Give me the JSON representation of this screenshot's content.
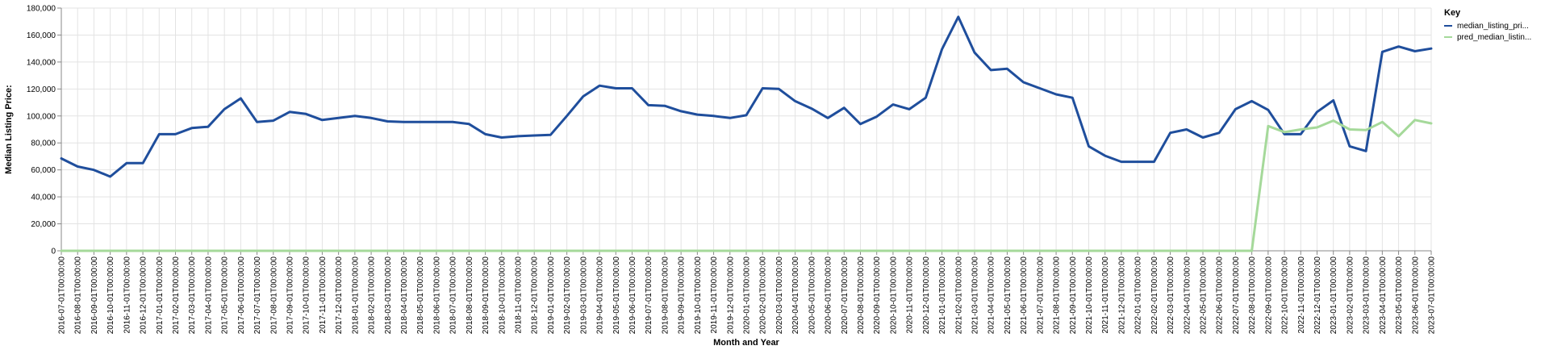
{
  "chart_data": {
    "type": "line",
    "xlabel": "Month and Year",
    "ylabel": "Median Listing Price:",
    "ylim": [
      0,
      180000
    ],
    "y_ticks": [
      "0",
      "20,000",
      "40,000",
      "60,000",
      "80,000",
      "100,000",
      "120,000",
      "140,000",
      "160,000",
      "180,000"
    ],
    "y_tick_values": [
      0,
      20000,
      40000,
      60000,
      80000,
      100000,
      120000,
      140000,
      160000,
      180000
    ],
    "grid": true,
    "legend": {
      "title": "Key",
      "position": "right"
    },
    "x": [
      "2016-07-01T00:00:00",
      "2016-08-01T00:00:00",
      "2016-09-01T00:00:00",
      "2016-10-01T00:00:00",
      "2016-11-01T00:00:00",
      "2016-12-01T00:00:00",
      "2017-01-01T00:00:00",
      "2017-02-01T00:00:00",
      "2017-03-01T00:00:00",
      "2017-04-01T00:00:00",
      "2017-05-01T00:00:00",
      "2017-06-01T00:00:00",
      "2017-07-01T00:00:00",
      "2017-08-01T00:00:00",
      "2017-09-01T00:00:00",
      "2017-10-01T00:00:00",
      "2017-11-01T00:00:00",
      "2017-12-01T00:00:00",
      "2018-01-01T00:00:00",
      "2018-02-01T00:00:00",
      "2018-03-01T00:00:00",
      "2018-04-01T00:00:00",
      "2018-05-01T00:00:00",
      "2018-06-01T00:00:00",
      "2018-07-01T00:00:00",
      "2018-08-01T00:00:00",
      "2018-09-01T00:00:00",
      "2018-10-01T00:00:00",
      "2018-11-01T00:00:00",
      "2018-12-01T00:00:00",
      "2019-01-01T00:00:00",
      "2019-02-01T00:00:00",
      "2019-03-01T00:00:00",
      "2019-04-01T00:00:00",
      "2019-05-01T00:00:00",
      "2019-06-01T00:00:00",
      "2019-07-01T00:00:00",
      "2019-08-01T00:00:00",
      "2019-09-01T00:00:00",
      "2019-10-01T00:00:00",
      "2019-11-01T00:00:00",
      "2019-12-01T00:00:00",
      "2020-01-01T00:00:00",
      "2020-02-01T00:00:00",
      "2020-03-01T00:00:00",
      "2020-04-01T00:00:00",
      "2020-05-01T00:00:00",
      "2020-06-01T00:00:00",
      "2020-07-01T00:00:00",
      "2020-08-01T00:00:00",
      "2020-09-01T00:00:00",
      "2020-10-01T00:00:00",
      "2020-11-01T00:00:00",
      "2020-12-01T00:00:00",
      "2021-01-01T00:00:00",
      "2021-02-01T00:00:00",
      "2021-03-01T00:00:00",
      "2021-04-01T00:00:00",
      "2021-05-01T00:00:00",
      "2021-06-01T00:00:00",
      "2021-07-01T00:00:00",
      "2021-08-01T00:00:00",
      "2021-09-01T00:00:00",
      "2021-10-01T00:00:00",
      "2021-11-01T00:00:00",
      "2021-12-01T00:00:00",
      "2022-01-01T00:00:00",
      "2022-02-01T00:00:00",
      "2022-03-01T00:00:00",
      "2022-04-01T00:00:00",
      "2022-05-01T00:00:00",
      "2022-06-01T00:00:00",
      "2022-07-01T00:00:00",
      "2022-08-01T00:00:00",
      "2022-09-01T00:00:00",
      "2022-10-01T00:00:00",
      "2022-11-01T00:00:00",
      "2022-12-01T00:00:00",
      "2023-01-01T00:00:00",
      "2023-02-01T00:00:00",
      "2023-03-01T00:00:00",
      "2023-04-01T00:00:00",
      "2023-05-01T00:00:00",
      "2023-06-01T00:00:00",
      "2023-07-01T00:00:00"
    ],
    "series": [
      {
        "name": "median_listing_pri...",
        "color": "#1f4e9c",
        "values": [
          68500,
          62500,
          60000,
          55000,
          65000,
          65000,
          86500,
          86500,
          91000,
          92000,
          105000,
          113000,
          95500,
          96500,
          103000,
          101500,
          97000,
          98500,
          100000,
          98500,
          96000,
          95500,
          95500,
          95500,
          95500,
          94000,
          86500,
          84000,
          85000,
          85500,
          86000,
          100000,
          114500,
          122500,
          120500,
          120500,
          108000,
          107500,
          103500,
          101000,
          100000,
          98500,
          100500,
          120500,
          120000,
          111000,
          105500,
          98500,
          106000,
          94000,
          99500,
          108500,
          105000,
          113500,
          149500,
          173500,
          147000,
          134000,
          135000,
          125000,
          120500,
          116000,
          113500,
          77500,
          70500,
          66000,
          66000,
          66000,
          87500,
          90000,
          84000,
          87500,
          105000,
          111000,
          104500,
          86500,
          86500,
          103000,
          111500,
          77500,
          74000,
          147500,
          151500,
          148000,
          150000
        ]
      },
      {
        "name": "pred_median_listin...",
        "color": "#a5d99a",
        "values": [
          0,
          0,
          0,
          0,
          0,
          0,
          0,
          0,
          0,
          0,
          0,
          0,
          0,
          0,
          0,
          0,
          0,
          0,
          0,
          0,
          0,
          0,
          0,
          0,
          0,
          0,
          0,
          0,
          0,
          0,
          0,
          0,
          0,
          0,
          0,
          0,
          0,
          0,
          0,
          0,
          0,
          0,
          0,
          0,
          0,
          0,
          0,
          0,
          0,
          0,
          0,
          0,
          0,
          0,
          0,
          0,
          0,
          0,
          0,
          0,
          0,
          0,
          0,
          0,
          0,
          0,
          0,
          0,
          0,
          0,
          0,
          0,
          0,
          0,
          92500,
          88000,
          90000,
          91500,
          96500,
          90000,
          89500,
          95500,
          85000,
          97000,
          94500
        ]
      }
    ]
  }
}
